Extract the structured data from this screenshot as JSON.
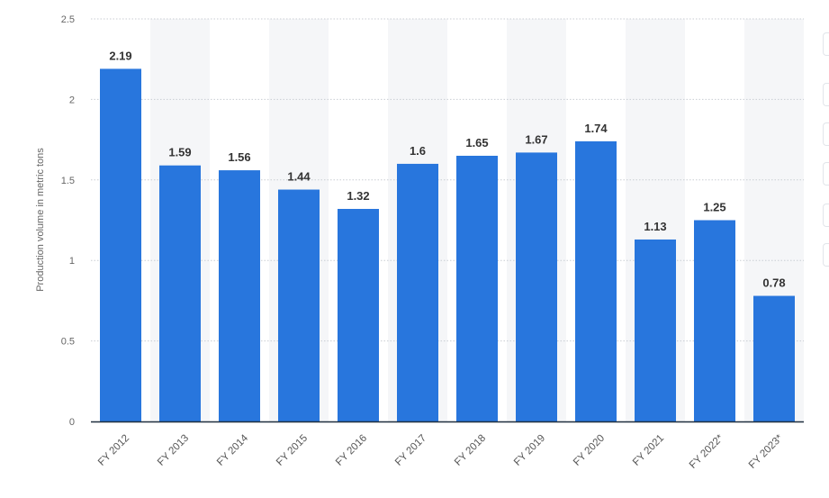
{
  "chart_data": {
    "type": "bar",
    "title": "",
    "xlabel": "",
    "ylabel": "Production volume in metric tons",
    "categories": [
      "FY 2012",
      "FY 2013",
      "FY 2014",
      "FY 2015",
      "FY 2016",
      "FY 2017",
      "FY 2018",
      "FY 2019",
      "FY 2020",
      "FY 2021",
      "FY 2022*",
      "FY 2023*"
    ],
    "values": [
      2.19,
      1.59,
      1.56,
      1.44,
      1.32,
      1.6,
      1.65,
      1.67,
      1.74,
      1.13,
      1.25,
      0.78
    ],
    "value_labels": [
      "2.19",
      "1.59",
      "1.56",
      "1.44",
      "1.32",
      "1.6",
      "1.65",
      "1.67",
      "1.74",
      "1.13",
      "1.25",
      "0.78"
    ],
    "y_ticks": [
      "0",
      "0.5",
      "1",
      "1.5",
      "2",
      "2.5"
    ],
    "ylim": [
      0,
      2.5
    ],
    "grid": true,
    "legend": "none",
    "bar_color": "#2876dd",
    "band_color": "#f5f6f8"
  }
}
